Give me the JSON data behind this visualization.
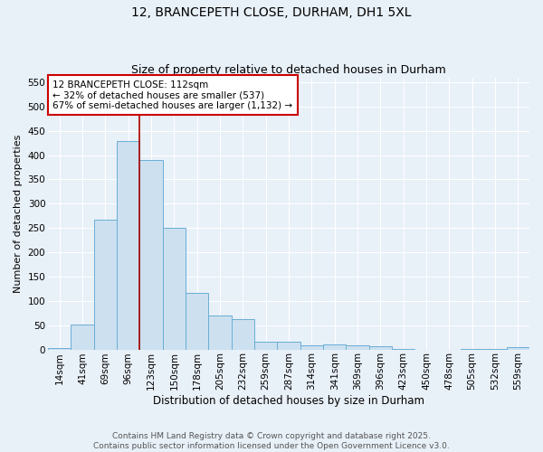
{
  "title": "12, BRANCEPETH CLOSE, DURHAM, DH1 5XL",
  "subtitle": "Size of property relative to detached houses in Durham",
  "xlabel": "Distribution of detached houses by size in Durham",
  "ylabel": "Number of detached properties",
  "categories": [
    "14sqm",
    "41sqm",
    "69sqm",
    "96sqm",
    "123sqm",
    "150sqm",
    "178sqm",
    "205sqm",
    "232sqm",
    "259sqm",
    "287sqm",
    "314sqm",
    "341sqm",
    "369sqm",
    "396sqm",
    "423sqm",
    "450sqm",
    "478sqm",
    "505sqm",
    "532sqm",
    "559sqm"
  ],
  "values": [
    2,
    51,
    267,
    430,
    390,
    250,
    117,
    70,
    62,
    15,
    15,
    8,
    10,
    8,
    6,
    1,
    0,
    0,
    1,
    1,
    4
  ],
  "bar_color": "#cce0f0",
  "bar_edge_color": "#6aaed6",
  "vline_x_index": 4,
  "vline_color": "#aa0000",
  "annotation_text": "12 BRANCEPETH CLOSE: 112sqm\n← 32% of detached houses are smaller (537)\n67% of semi-detached houses are larger (1,132) →",
  "annotation_box_color": "#ffffff",
  "annotation_box_edge_color": "#cc0000",
  "ylim": [
    0,
    560
  ],
  "yticks": [
    0,
    50,
    100,
    150,
    200,
    250,
    300,
    350,
    400,
    450,
    500,
    550
  ],
  "background_color": "#e8f0f8",
  "footer_line1": "Contains HM Land Registry data © Crown copyright and database right 2025.",
  "footer_line2": "Contains public sector information licensed under the Open Government Licence v3.0.",
  "title_fontsize": 10,
  "subtitle_fontsize": 9,
  "xlabel_fontsize": 8.5,
  "ylabel_fontsize": 8,
  "tick_fontsize": 7.5,
  "annotation_fontsize": 7.5,
  "footer_fontsize": 6.5
}
